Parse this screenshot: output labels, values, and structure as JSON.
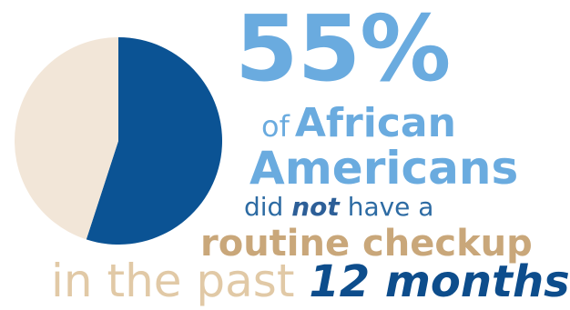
{
  "chart_data": {
    "type": "pie",
    "values": [
      55,
      45
    ],
    "colors": [
      "#0b5394",
      "#f2e6d8"
    ],
    "start_angle_deg": 0,
    "direction": "clockwise"
  },
  "headline": {
    "percent": "55%",
    "of": "of",
    "group_line1": "African",
    "group_line2": "Americans",
    "did_pre": "did",
    "not": "not",
    "did_post": "have a",
    "routine": "routine checkup",
    "past": "in the past",
    "months": "12 months"
  },
  "colors": {
    "light_blue": "#6aabdf",
    "mid_blue": "#2d6ba3",
    "dark_blue": "#0d4d8c",
    "tan": "#c9a77a",
    "light_tan": "#e1c9a6"
  }
}
